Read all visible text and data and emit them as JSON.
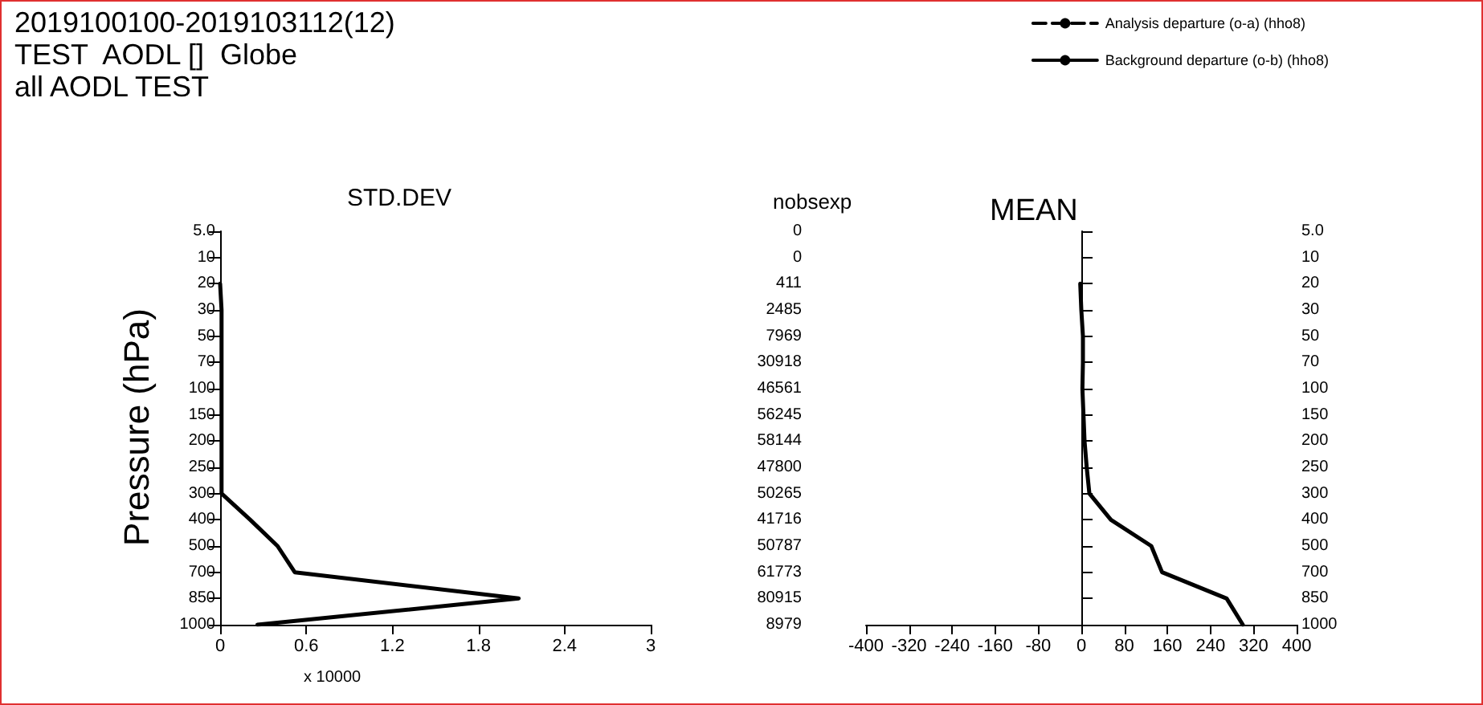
{
  "chart_data": [
    {
      "type": "line",
      "title": "STD.DEV",
      "annotations": [
        "2019100100-2019103112(12)",
        "TEST  AODL []  Globe",
        "all AODL TEST"
      ],
      "ylabel": "Pressure (hPa)",
      "xlabel": "x 10000",
      "orientation": "horizontal",
      "categories": [
        "5.0",
        "10",
        "20",
        "30",
        "50",
        "70",
        "100",
        "150",
        "200",
        "250",
        "300",
        "400",
        "500",
        "700",
        "850",
        "1000"
      ],
      "xlim": [
        0,
        3
      ],
      "xticks": [
        0,
        0.6,
        1.2,
        1.8,
        2.4,
        3
      ],
      "grid": false,
      "legend": false,
      "marker": "none",
      "series": [
        {
          "color": "#000000",
          "line_style": "dashed",
          "values": [
            null,
            null,
            null,
            null,
            null,
            null,
            null,
            null,
            null,
            null,
            null,
            null,
            null,
            null,
            null,
            null
          ]
        },
        {
          "color": "#000000",
          "line_style": "solid",
          "values": [
            null,
            null,
            0,
            0.01,
            0.01,
            0.01,
            0.01,
            0.01,
            0.01,
            0.01,
            0.01,
            0.21,
            0.4,
            0.52,
            2.08,
            0.26
          ]
        }
      ]
    },
    {
      "type": "line",
      "title": "MEAN",
      "ylabel": "nobsexp",
      "orientation": "horizontal",
      "categories": [
        "5.0",
        "10",
        "20",
        "30",
        "50",
        "70",
        "100",
        "150",
        "200",
        "250",
        "300",
        "400",
        "500",
        "700",
        "850",
        "1000"
      ],
      "y2_categories": [
        "0",
        "0",
        "411",
        "2485",
        "7969",
        "30918",
        "46561",
        "56245",
        "58144",
        "47800",
        "50265",
        "41716",
        "50787",
        "61773",
        "80915",
        "8979"
      ],
      "xlim": [
        -400,
        400
      ],
      "xticks": [
        -400,
        -320,
        -240,
        -160,
        -80,
        0,
        80,
        160,
        240,
        320,
        400
      ],
      "grid": false,
      "legend": "top right",
      "marker": "none",
      "ref_lines": [
        {
          "axis": "x",
          "value": 0,
          "color": "#000000"
        }
      ],
      "series": [
        {
          "name": "Analysis departure (o-a) (hho8)",
          "color": "#000000",
          "line_style": "dashed",
          "values": [
            null,
            null,
            null,
            null,
            null,
            null,
            null,
            null,
            null,
            null,
            null,
            null,
            null,
            null,
            null,
            null
          ]
        },
        {
          "name": "Background departure (o-b) (hho8)",
          "color": "#000000",
          "line_style": "solid",
          "values": [
            null,
            null,
            -2,
            0,
            3,
            3,
            2,
            4,
            6,
            10,
            15,
            55,
            130,
            150,
            270,
            300
          ]
        }
      ]
    }
  ]
}
